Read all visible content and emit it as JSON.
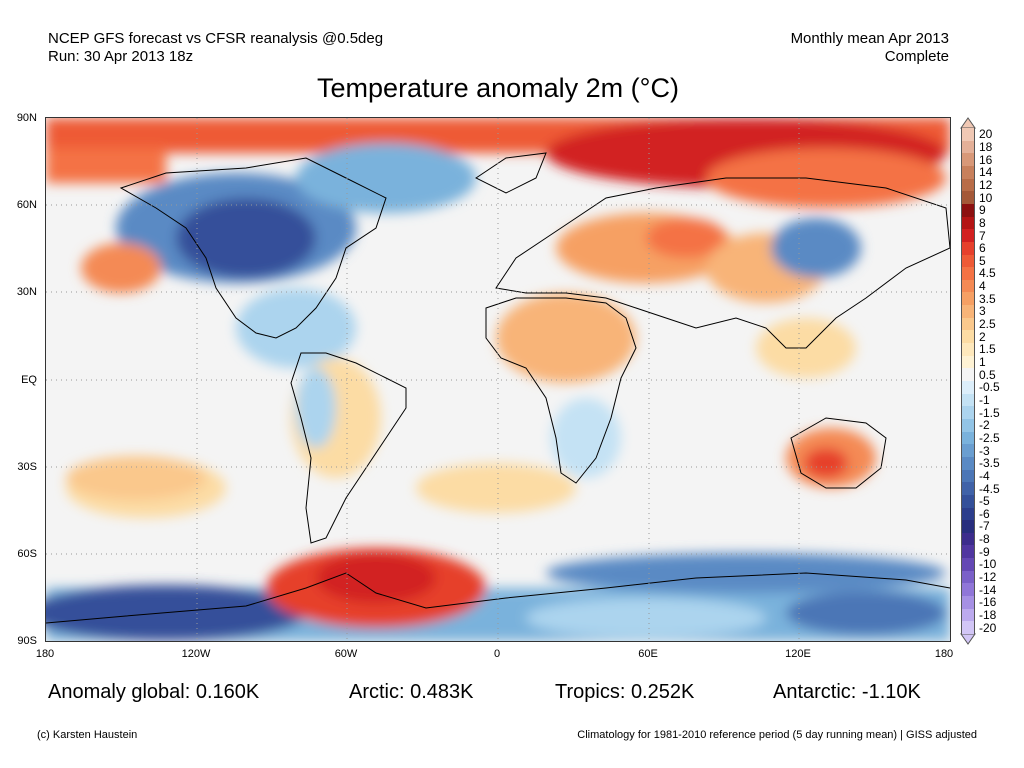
{
  "header": {
    "line1_left": "NCEP GFS forecast vs CFSR reanalysis @0.5deg",
    "line2_left": "Run: 30 Apr 2013 18z",
    "line1_right": "Monthly mean Apr 2013",
    "line2_right": "Complete"
  },
  "title": "Temperature anomaly 2m (°C)",
  "axes": {
    "lat_labels": [
      "90N",
      "60N",
      "30N",
      "EQ",
      "30S",
      "60S",
      "90S"
    ],
    "lon_labels": [
      "180",
      "120W",
      "60W",
      "0",
      "60E",
      "120E",
      "180"
    ]
  },
  "stats": {
    "global": "Anomaly global: 0.160K",
    "arctic": "Arctic: 0.483K",
    "tropics": "Tropics: 0.252K",
    "antarctic": "Antarctic: -1.10K"
  },
  "colorbar": {
    "labels": [
      "20",
      "18",
      "16",
      "14",
      "12",
      "10",
      "9",
      "8",
      "7",
      "6",
      "5",
      "4.5",
      "4",
      "3.5",
      "3",
      "2.5",
      "2",
      "1.5",
      "1",
      "0.5",
      "-0.5",
      "-1",
      "-1.5",
      "-2",
      "-2.5",
      "-3",
      "-3.5",
      "-4",
      "-4.5",
      "-5",
      "-6",
      "-7",
      "-8",
      "-9",
      "-10",
      "-12",
      "-14",
      "-16",
      "-18",
      "-20"
    ],
    "colors": [
      "#f0c8b4",
      "#e4b098",
      "#d89878",
      "#c8805c",
      "#b86c48",
      "#a45838",
      "#8c1010",
      "#b41414",
      "#d22020",
      "#e6402c",
      "#ee5a36",
      "#f47244",
      "#f48a54",
      "#f6a064",
      "#f8b478",
      "#fac88c",
      "#fcdca4",
      "#fee8bc",
      "#fef2d4",
      "#f4f4f4",
      "#dceefa",
      "#c4e2f4",
      "#acd4ee",
      "#92c4e6",
      "#7ab2dc",
      "#6a9ed0",
      "#5a8ac4",
      "#4c76b6",
      "#4062a8",
      "#34509a",
      "#2c3e8c",
      "#282e7e",
      "#3c2c8c",
      "#5036a0",
      "#6448b4",
      "#7a60c8",
      "#9076d8",
      "#a690e4",
      "#bcaaee",
      "#d2c6f6"
    ]
  },
  "footer": {
    "left": "(c) Karsten Haustein",
    "right": "Climatology for 1981-2010 reference period (5 day running mean) | GISS adjusted"
  }
}
